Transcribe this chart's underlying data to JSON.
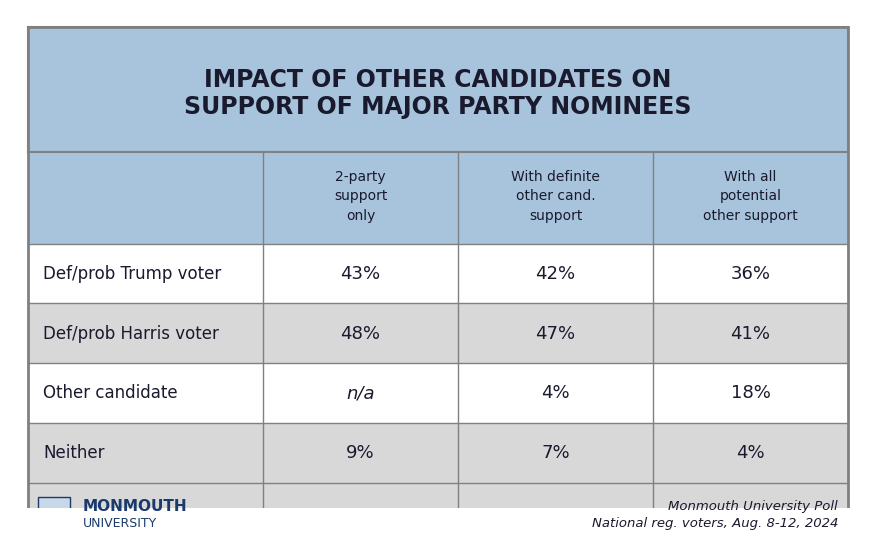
{
  "title_line1": "IMPACT OF OTHER CANDIDATES ON",
  "title_line2": "SUPPORT OF MAJOR PARTY NOMINEES",
  "col_headers": [
    "2-party\nsupport\nonly",
    "With definite\nother cand.\nsupport",
    "With all\npotential\nother support"
  ],
  "rows": [
    {
      "label": "Def/prob Trump voter",
      "values": [
        "43%",
        "42%",
        "36%"
      ],
      "italic_col": -1
    },
    {
      "label": "Def/prob Harris voter",
      "values": [
        "48%",
        "47%",
        "41%"
      ],
      "italic_col": -1
    },
    {
      "label": "Other candidate",
      "values": [
        "n/a",
        "4%",
        "18%"
      ],
      "italic_col": 0
    },
    {
      "label": "Neither",
      "values": [
        "9%",
        "7%",
        "4%"
      ],
      "italic_col": -1
    }
  ],
  "footer_left_line1": "MONMOUTH",
  "footer_left_line2": "UNIVERSITY",
  "footer_right_line1": "Monmouth University Poll",
  "footer_right_line2": "National reg. voters, Aug. 8-12, 2024",
  "header_bg": "#a8c4dc",
  "row_bg_odd": "#ffffff",
  "row_bg_even": "#d8d8d8",
  "footer_bg": "#d8d8d8",
  "border_color": "#808080",
  "title_color": "#1a1a2e",
  "header_text_color": "#1a1a2e",
  "row_text_color": "#1a1a2e",
  "outer_border_color": "#808080"
}
